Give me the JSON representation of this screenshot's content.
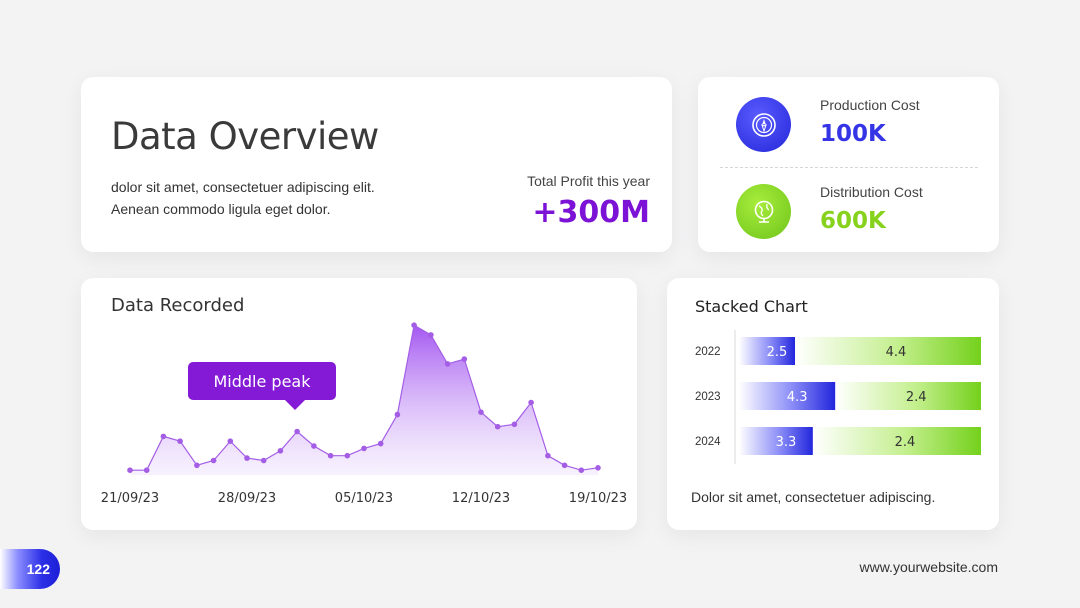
{
  "overview": {
    "title": "Data Overview",
    "description_line1": "dolor sit amet, consectetuer adipiscing elit.",
    "description_line2": "Aenean commodo ligula eget dolor.",
    "profit_label": "Total Profit this year",
    "profit_value": "+300M",
    "profit_color": "#7b12d6"
  },
  "costs": {
    "production": {
      "label": "Production Cost",
      "value": "100K",
      "color": "#3535e6",
      "icon": "compass-icon"
    },
    "distribution": {
      "label": "Distribution Cost",
      "value": "600K",
      "color": "#86d21c",
      "icon": "globe-icon"
    }
  },
  "recorded": {
    "title": "Data Recorded",
    "callout": "Middle peak",
    "accent_color": "#a45ee6"
  },
  "stacked": {
    "title": "Stacked Chart",
    "note": "Dolor sit amet, consectetuer adipiscing."
  },
  "footer": {
    "page_number": "122",
    "website": "www.yourwebsite.com"
  },
  "chart_data": [
    {
      "type": "area",
      "title": "Data Recorded",
      "x_tick_labels": [
        "21/09/23",
        "28/09/23",
        "05/10/23",
        "12/10/23",
        "19/10/23"
      ],
      "y": [
        2,
        2,
        16,
        14,
        4,
        6,
        14,
        7,
        6,
        10,
        18,
        12,
        8,
        8,
        11,
        13,
        25,
        62,
        58,
        46,
        48,
        26,
        20,
        21,
        30,
        8,
        4,
        2,
        3
      ],
      "ylim": [
        0,
        65
      ],
      "annotation": "Middle peak"
    },
    {
      "type": "bar",
      "orientation": "horizontal",
      "stacked": true,
      "title": "Stacked Chart",
      "categories": [
        "2022",
        "2023",
        "2024"
      ],
      "series": [
        {
          "values": [
            2.5,
            4.3,
            3.3
          ],
          "color": "#2a2ee0"
        },
        {
          "values": [
            4.4,
            2.4,
            2.4
          ],
          "color": "#7ed321"
        }
      ]
    }
  ]
}
